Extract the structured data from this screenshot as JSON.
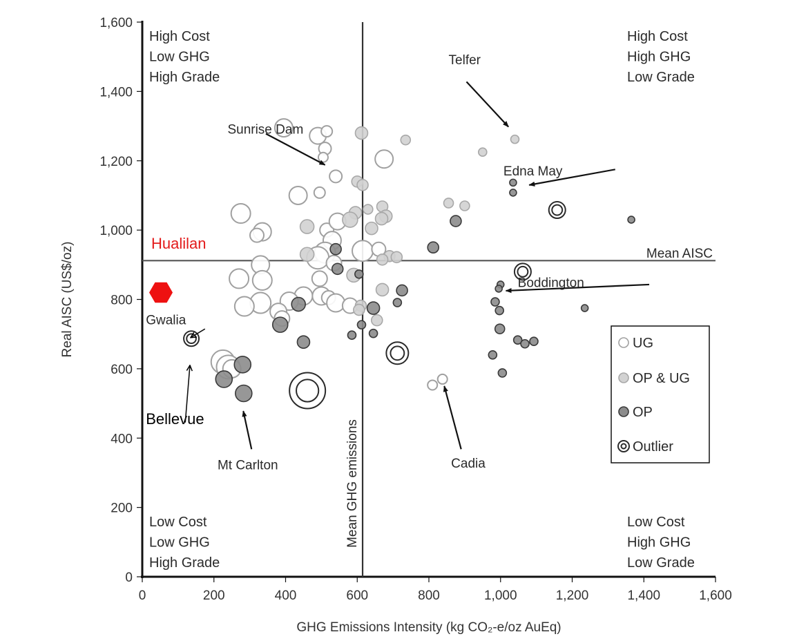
{
  "chart_data": {
    "type": "scatter",
    "xlabel": "GHG Emissions Intensity (kg CO₂-e/oz AuEq)",
    "ylabel": "Real AISC (US$/oz)",
    "xlim": [
      0,
      1600
    ],
    "ylim": [
      0,
      1600
    ],
    "x_ticks": [
      "0",
      "200",
      "400",
      "600",
      "800",
      "1,000",
      "1,200",
      "1,400",
      "1,600"
    ],
    "y_ticks": [
      "0",
      "200",
      "400",
      "600",
      "800",
      "1,000",
      "1,200",
      "1,400",
      "1,600"
    ],
    "grid": false,
    "mean_ghg": 615,
    "mean_ghg_label": "Mean GHG emissions",
    "mean_aisc": 912,
    "mean_aisc_label": "Mean AISC",
    "quadrants": {
      "top_left": [
        "High Cost",
        "Low GHG",
        "High Grade"
      ],
      "top_right": [
        "High Cost",
        "High GHG",
        "Low Grade"
      ],
      "bottom_left": [
        "Low Cost",
        "Low GHG",
        "High Grade"
      ],
      "bottom_right": [
        "Low Cost",
        "High GHG",
        "Low Grade"
      ]
    },
    "legend": {
      "placement": "right",
      "items": [
        {
          "key": "UG",
          "label": "UG"
        },
        {
          "key": "OPUG",
          "label": "OP & UG"
        },
        {
          "key": "OP",
          "label": "OP"
        },
        {
          "key": "Outlier",
          "label": "Outlier"
        }
      ]
    },
    "colors": {
      "UG_fill": "#ffffff",
      "UG_stroke": "#a0a0a0",
      "OPUG_fill": "#d2d2d2",
      "OPUG_stroke": "#a8a8a8",
      "OP_fill": "#8c8c8c",
      "OP_stroke": "#3a3a3a",
      "Outlier_stroke": "#2a2a2a",
      "highlight": "#ee1111"
    },
    "series": [
      {
        "name": "UG",
        "points": [
          {
            "x": 395,
            "y": 1295,
            "s": 13
          },
          {
            "x": 490,
            "y": 1272,
            "s": 12
          },
          {
            "x": 515,
            "y": 1285,
            "s": 8
          },
          {
            "x": 510,
            "y": 1235,
            "s": 9
          },
          {
            "x": 505,
            "y": 1210,
            "s": 7
          },
          {
            "x": 540,
            "y": 1155,
            "s": 9
          },
          {
            "x": 675,
            "y": 1205,
            "s": 13
          },
          {
            "x": 435,
            "y": 1100,
            "s": 13
          },
          {
            "x": 495,
            "y": 1108,
            "s": 8
          },
          {
            "x": 275,
            "y": 1048,
            "s": 14
          },
          {
            "x": 335,
            "y": 995,
            "s": 13
          },
          {
            "x": 320,
            "y": 985,
            "s": 10
          },
          {
            "x": 515,
            "y": 1000,
            "s": 10
          },
          {
            "x": 530,
            "y": 970,
            "s": 13
          },
          {
            "x": 545,
            "y": 1025,
            "s": 12
          },
          {
            "x": 510,
            "y": 935,
            "s": 15
          },
          {
            "x": 490,
            "y": 920,
            "s": 16
          },
          {
            "x": 535,
            "y": 905,
            "s": 11
          },
          {
            "x": 615,
            "y": 940,
            "s": 15
          },
          {
            "x": 660,
            "y": 945,
            "s": 10
          },
          {
            "x": 330,
            "y": 900,
            "s": 13
          },
          {
            "x": 270,
            "y": 860,
            "s": 14
          },
          {
            "x": 335,
            "y": 855,
            "s": 14
          },
          {
            "x": 495,
            "y": 860,
            "s": 11
          },
          {
            "x": 450,
            "y": 810,
            "s": 13
          },
          {
            "x": 500,
            "y": 810,
            "s": 13
          },
          {
            "x": 520,
            "y": 805,
            "s": 10
          },
          {
            "x": 410,
            "y": 795,
            "s": 13
          },
          {
            "x": 330,
            "y": 790,
            "s": 15
          },
          {
            "x": 285,
            "y": 780,
            "s": 14
          },
          {
            "x": 380,
            "y": 765,
            "s": 12
          },
          {
            "x": 390,
            "y": 745,
            "s": 11
          },
          {
            "x": 540,
            "y": 790,
            "s": 13
          },
          {
            "x": 580,
            "y": 782,
            "s": 11
          },
          {
            "x": 225,
            "y": 620,
            "s": 17
          },
          {
            "x": 240,
            "y": 605,
            "s": 17
          },
          {
            "x": 250,
            "y": 600,
            "s": 13
          },
          {
            "x": 810,
            "y": 553,
            "s": 7
          },
          {
            "x": 838,
            "y": 570,
            "s": 7
          }
        ]
      },
      {
        "name": "OP & UG",
        "points": [
          {
            "x": 600,
            "y": 1140,
            "s": 8
          },
          {
            "x": 615,
            "y": 1130,
            "s": 8
          },
          {
            "x": 612,
            "y": 1280,
            "s": 9
          },
          {
            "x": 735,
            "y": 1260,
            "s": 7
          },
          {
            "x": 670,
            "y": 1068,
            "s": 8
          },
          {
            "x": 630,
            "y": 1060,
            "s": 7
          },
          {
            "x": 595,
            "y": 1050,
            "s": 9
          },
          {
            "x": 580,
            "y": 1030,
            "s": 11
          },
          {
            "x": 680,
            "y": 1040,
            "s": 9
          },
          {
            "x": 668,
            "y": 1033,
            "s": 9
          },
          {
            "x": 640,
            "y": 1005,
            "s": 9
          },
          {
            "x": 460,
            "y": 1010,
            "s": 10
          },
          {
            "x": 690,
            "y": 925,
            "s": 8
          },
          {
            "x": 710,
            "y": 922,
            "s": 8
          },
          {
            "x": 670,
            "y": 915,
            "s": 8
          },
          {
            "x": 855,
            "y": 1078,
            "s": 7
          },
          {
            "x": 900,
            "y": 1070,
            "s": 7
          },
          {
            "x": 950,
            "y": 1225,
            "s": 6
          },
          {
            "x": 1040,
            "y": 1262,
            "s": 6
          },
          {
            "x": 670,
            "y": 828,
            "s": 9
          },
          {
            "x": 610,
            "y": 782,
            "s": 8
          },
          {
            "x": 605,
            "y": 770,
            "s": 8
          },
          {
            "x": 655,
            "y": 740,
            "s": 8
          },
          {
            "x": 460,
            "y": 930,
            "s": 10
          },
          {
            "x": 590,
            "y": 870,
            "s": 10
          }
        ]
      },
      {
        "name": "OP",
        "points": [
          {
            "x": 540,
            "y": 945,
            "s": 8
          },
          {
            "x": 545,
            "y": 888,
            "s": 8
          },
          {
            "x": 605,
            "y": 873,
            "s": 6
          },
          {
            "x": 436,
            "y": 786,
            "s": 10
          },
          {
            "x": 385,
            "y": 727,
            "s": 11
          },
          {
            "x": 450,
            "y": 677,
            "s": 9
          },
          {
            "x": 280,
            "y": 612,
            "s": 12
          },
          {
            "x": 228,
            "y": 570,
            "s": 12
          },
          {
            "x": 283,
            "y": 529,
            "s": 12
          },
          {
            "x": 612,
            "y": 727,
            "s": 6
          },
          {
            "x": 585,
            "y": 697,
            "s": 6
          },
          {
            "x": 645,
            "y": 775,
            "s": 9
          },
          {
            "x": 645,
            "y": 702,
            "s": 6
          },
          {
            "x": 725,
            "y": 826,
            "s": 8
          },
          {
            "x": 712,
            "y": 791,
            "s": 6
          },
          {
            "x": 812,
            "y": 950,
            "s": 8
          },
          {
            "x": 875,
            "y": 1026,
            "s": 8
          },
          {
            "x": 1035,
            "y": 1137,
            "s": 5
          },
          {
            "x": 1035,
            "y": 1108,
            "s": 5
          },
          {
            "x": 1365,
            "y": 1030,
            "s": 5
          },
          {
            "x": 1235,
            "y": 775,
            "s": 5
          },
          {
            "x": 1000,
            "y": 843,
            "s": 5
          },
          {
            "x": 995,
            "y": 831,
            "s": 5
          },
          {
            "x": 985,
            "y": 793,
            "s": 6
          },
          {
            "x": 997,
            "y": 768,
            "s": 6
          },
          {
            "x": 998,
            "y": 715,
            "s": 7
          },
          {
            "x": 1048,
            "y": 683,
            "s": 6
          },
          {
            "x": 1068,
            "y": 672,
            "s": 6
          },
          {
            "x": 1093,
            "y": 679,
            "s": 6
          },
          {
            "x": 978,
            "y": 640,
            "s": 6
          },
          {
            "x": 1005,
            "y": 588,
            "s": 6
          }
        ]
      },
      {
        "name": "Outlier",
        "points": [
          {
            "x": 1158,
            "y": 1058,
            "s": 12
          },
          {
            "x": 1062,
            "y": 880,
            "s": 12
          },
          {
            "x": 712,
            "y": 645,
            "s": 16
          },
          {
            "x": 461,
            "y": 537,
            "s": 26
          },
          {
            "x": 137,
            "y": 687,
            "s": 11
          }
        ]
      }
    ],
    "highlight": {
      "label": "Hualilan",
      "x": 52,
      "y": 820
    },
    "annotations": [
      {
        "label": "Telfer",
        "text_x": 855,
        "text_y": 1478,
        "arrow_from": [
          905,
          1428
        ],
        "arrow_to": [
          1022,
          1298
        ]
      },
      {
        "label": "Sunrise Dam",
        "text_x": 238,
        "text_y": 1278,
        "arrow_from": [
          345,
          1278
        ],
        "arrow_to": [
          510,
          1188
        ]
      },
      {
        "label": "Edna May",
        "text_x": 1008,
        "text_y": 1158,
        "arrow_from": [
          1320,
          1175
        ],
        "arrow_to": [
          1080,
          1130
        ]
      },
      {
        "label": "Boddington",
        "text_x": 1048,
        "text_y": 836,
        "arrow_from": [
          1415,
          843
        ],
        "arrow_to": [
          1015,
          825
        ]
      },
      {
        "label": "Gwalia",
        "text_x": 10,
        "text_y": 728,
        "arrow_from": [
          175,
          715
        ],
        "arrow_to": [
          135,
          690
        ]
      },
      {
        "label": "Bellevue",
        "text_x": 10,
        "text_y": 440,
        "arrow_from": [
          120,
          445
        ],
        "arrow_to": [
          133,
          610
        ]
      },
      {
        "label": "Mt Carlton",
        "text_x": 210,
        "text_y": 310,
        "arrow_from": [
          305,
          368
        ],
        "arrow_to": [
          282,
          478
        ]
      },
      {
        "label": "Cadia",
        "text_x": 862,
        "text_y": 315,
        "arrow_from": [
          890,
          368
        ],
        "arrow_to": [
          843,
          550
        ]
      }
    ]
  }
}
